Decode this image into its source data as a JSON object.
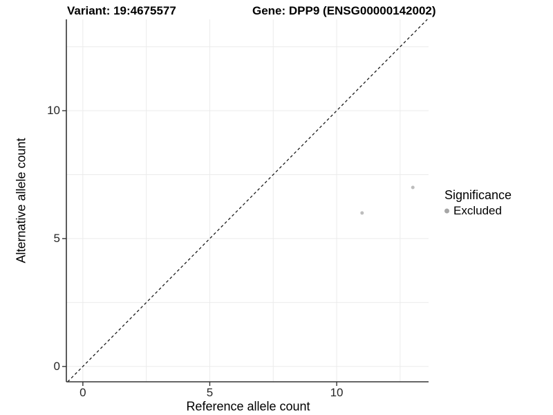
{
  "titles": {
    "variant": "Variant: 19:4675577",
    "gene": "Gene: DPP9 (ENSG00000142002)"
  },
  "chart_data": {
    "type": "scatter",
    "title": "Variant: 19:4675577        Gene: DPP9 (ENSG00000142002)",
    "xlabel": "Reference allele count",
    "ylabel": "Alternative allele count",
    "xlim": [
      -0.65,
      13.62
    ],
    "ylim": [
      -0.6,
      13.57
    ],
    "x_ticks": [
      0,
      5,
      10
    ],
    "y_ticks": [
      0,
      5,
      10
    ],
    "x_minor_ticks": [
      2.5,
      7.5,
      12.5
    ],
    "y_minor_ticks": [
      2.5,
      7.5,
      12.5
    ],
    "grid": true,
    "legend_position": "right",
    "series": [
      {
        "name": "Excluded",
        "points": [
          {
            "x": 11,
            "y": 6
          },
          {
            "x": 13,
            "y": 7
          }
        ]
      }
    ],
    "reference_line": {
      "kind": "identity",
      "equation": "y = x",
      "style": "dashed"
    },
    "legend": {
      "title": "Significance",
      "items": [
        {
          "label": "Excluded",
          "color": "#a6a6a6"
        }
      ]
    },
    "colors": {
      "point": "#bdbdbd",
      "grid": "#ebebeb",
      "axis": "#333333",
      "reference_line": "#1a1a1a",
      "text": "#000000"
    }
  }
}
